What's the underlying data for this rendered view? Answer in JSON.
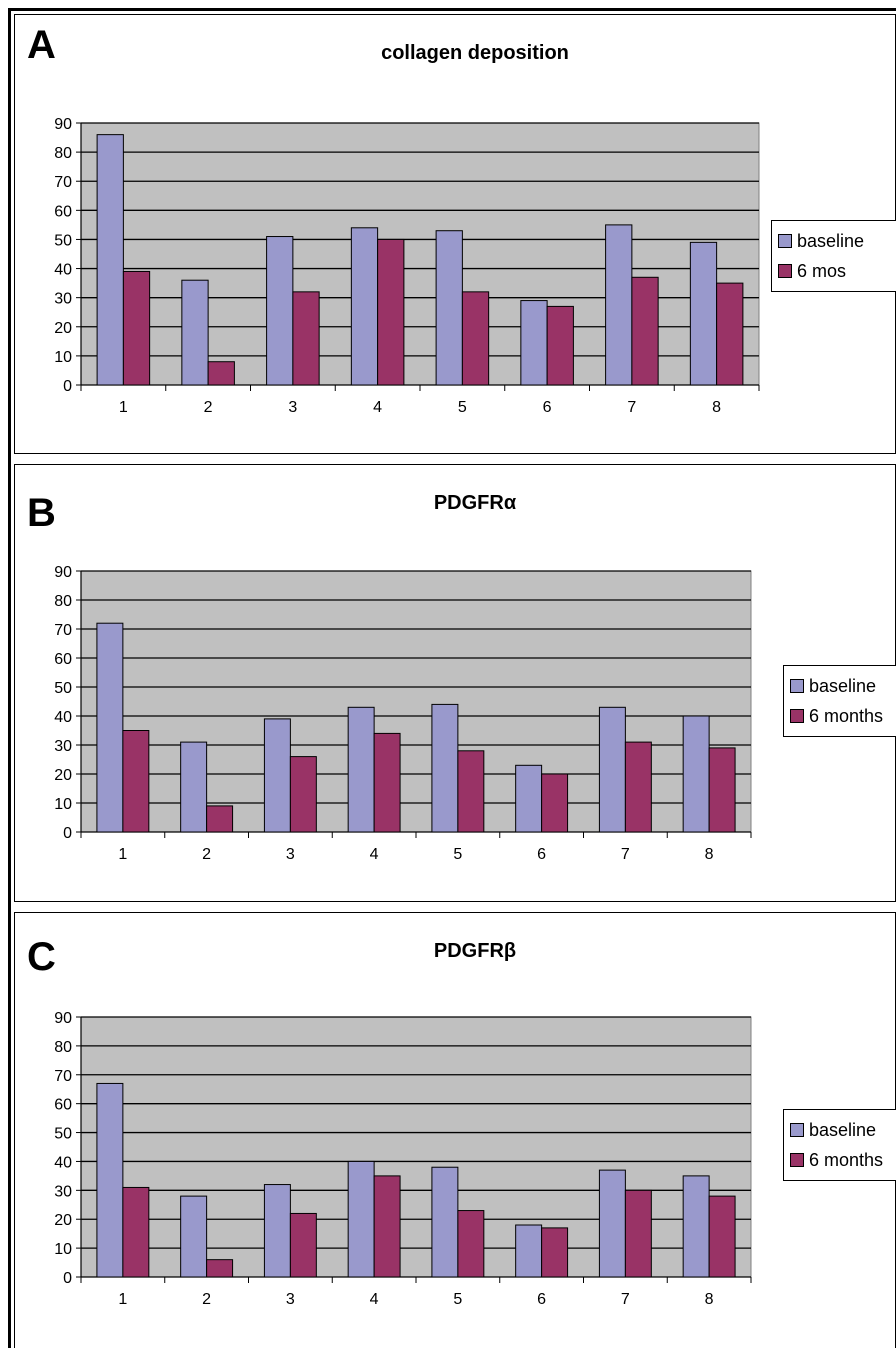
{
  "colors": {
    "baseline": "#9999cc",
    "followup": "#993366",
    "plot_bg": "#c0c0c0",
    "grid": "#000000"
  },
  "chart_data": [
    {
      "type": "bar",
      "panel_label": "A",
      "title": "collagen deposition",
      "categories": [
        "1",
        "2",
        "3",
        "4",
        "5",
        "6",
        "7",
        "8"
      ],
      "ylim": [
        0,
        90
      ],
      "yticks": [
        "0",
        "10",
        "20",
        "30",
        "40",
        "50",
        "60",
        "70",
        "80",
        "90"
      ],
      "grid": true,
      "legend_position": "right",
      "series": [
        {
          "name": "baseline",
          "values": [
            86,
            36,
            51,
            54,
            53,
            29,
            55,
            49
          ]
        },
        {
          "name": "6 mos",
          "values": [
            39,
            8,
            32,
            50,
            32,
            27,
            37,
            35
          ]
        }
      ]
    },
    {
      "type": "bar",
      "panel_label": "B",
      "title": "PDGFRα",
      "categories": [
        "1",
        "2",
        "3",
        "4",
        "5",
        "6",
        "7",
        "8"
      ],
      "ylim": [
        0,
        90
      ],
      "yticks": [
        "0",
        "10",
        "20",
        "30",
        "40",
        "50",
        "60",
        "70",
        "80",
        "90"
      ],
      "grid": true,
      "legend_position": "right",
      "series": [
        {
          "name": "baseline",
          "values": [
            72,
            31,
            39,
            43,
            44,
            23,
            43,
            40
          ]
        },
        {
          "name": "6 months",
          "values": [
            35,
            9,
            26,
            34,
            28,
            20,
            31,
            29
          ]
        }
      ]
    },
    {
      "type": "bar",
      "panel_label": "C",
      "title": "PDGFRβ",
      "categories": [
        "1",
        "2",
        "3",
        "4",
        "5",
        "6",
        "7",
        "8"
      ],
      "ylim": [
        0,
        90
      ],
      "yticks": [
        "0",
        "10",
        "20",
        "30",
        "40",
        "50",
        "60",
        "70",
        "80",
        "90"
      ],
      "grid": true,
      "legend_position": "right",
      "series": [
        {
          "name": "baseline",
          "values": [
            67,
            28,
            32,
            40,
            38,
            18,
            37,
            35
          ]
        },
        {
          "name": "6 months",
          "values": [
            31,
            6,
            22,
            35,
            23,
            17,
            30,
            28
          ]
        }
      ]
    }
  ]
}
